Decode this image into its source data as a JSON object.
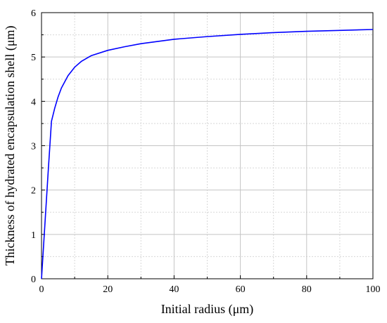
{
  "chart_data": {
    "type": "line",
    "xlabel": "Initial radius (μm)",
    "ylabel": "Thickness of hydrated encapsulation shell (μm)",
    "xlim": [
      0,
      100
    ],
    "ylim": [
      0,
      6
    ],
    "x_ticks": [
      "0",
      "20",
      "40",
      "60",
      "80",
      "100"
    ],
    "y_ticks": [
      "0",
      "1",
      "2",
      "3",
      "4",
      "5",
      "6"
    ],
    "grid": true,
    "series": [
      {
        "color": "#0000ff",
        "x": [
          0,
          1,
          2,
          3,
          4,
          5,
          6,
          8,
          10,
          12,
          15,
          20,
          25,
          30,
          40,
          50,
          60,
          70,
          80,
          90,
          100
        ],
        "y": [
          0,
          1.2,
          2.4,
          3.55,
          3.85,
          4.1,
          4.3,
          4.58,
          4.77,
          4.9,
          5.03,
          5.15,
          5.23,
          5.3,
          5.4,
          5.46,
          5.51,
          5.55,
          5.58,
          5.6,
          5.62
        ]
      }
    ]
  }
}
